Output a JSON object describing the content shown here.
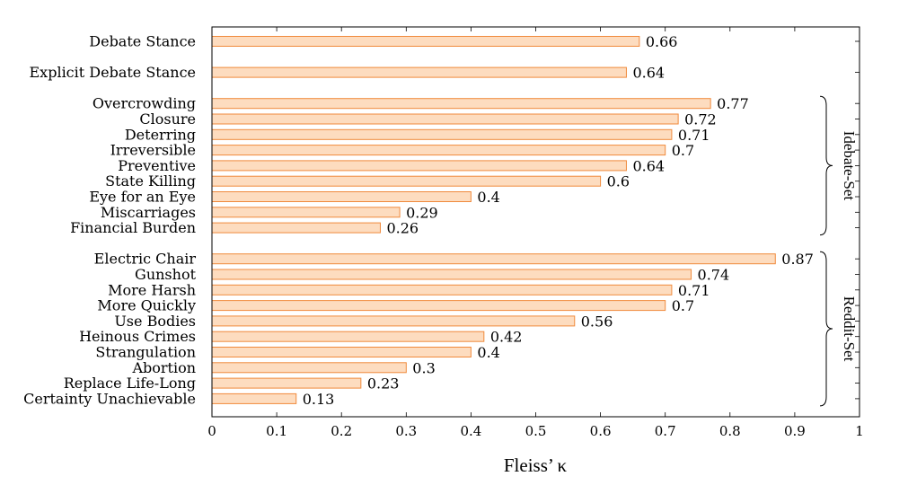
{
  "chart_data": {
    "type": "bar",
    "orientation": "horizontal",
    "title": "",
    "xlabel": "Fleiss’ κ",
    "ylabel": "",
    "xlim": [
      0,
      1
    ],
    "xticks": [
      "0",
      "0.1",
      "0.2",
      "0.3",
      "0.4",
      "0.5",
      "0.6",
      "0.7",
      "0.8",
      "0.9",
      "1"
    ],
    "grid": false,
    "bar_fill": "#fddcbf",
    "bar_stroke": "#f08a3c",
    "categories": [
      "Debate Stance",
      "Explicit Debate Stance",
      "Overcrowding",
      "Closure",
      "Deterring",
      "Irreversible",
      "Preventive",
      "State Killing",
      "Eye for an Eye",
      "Miscarriages",
      "Financial Burden",
      "Electric Chair",
      "Gunshot",
      "More Harsh",
      "More Quickly",
      "Use Bodies",
      "Heinous Crimes",
      "Strangulation",
      "Abortion",
      "Replace Life-Long",
      "Certainty Unachievable"
    ],
    "values": [
      0.66,
      0.64,
      0.77,
      0.72,
      0.71,
      0.7,
      0.64,
      0.6,
      0.4,
      0.29,
      0.26,
      0.87,
      0.74,
      0.71,
      0.7,
      0.56,
      0.42,
      0.4,
      0.3,
      0.23,
      0.13
    ],
    "value_labels": [
      "0.66",
      "0.64",
      "0.77",
      "0.72",
      "0.71",
      "0.7",
      "0.64",
      "0.6",
      "0.4",
      "0.29",
      "0.26",
      "0.87",
      "0.74",
      "0.71",
      "0.7",
      "0.56",
      "0.42",
      "0.4",
      "0.3",
      "0.23",
      "0.13"
    ],
    "groups": [
      {
        "label": "Idebate-Set",
        "from": "Overcrowding",
        "to": "Financial Burden"
      },
      {
        "label": "Reddit-Set",
        "from": "Electric Chair",
        "to": "Certainty Unachievable"
      }
    ]
  }
}
